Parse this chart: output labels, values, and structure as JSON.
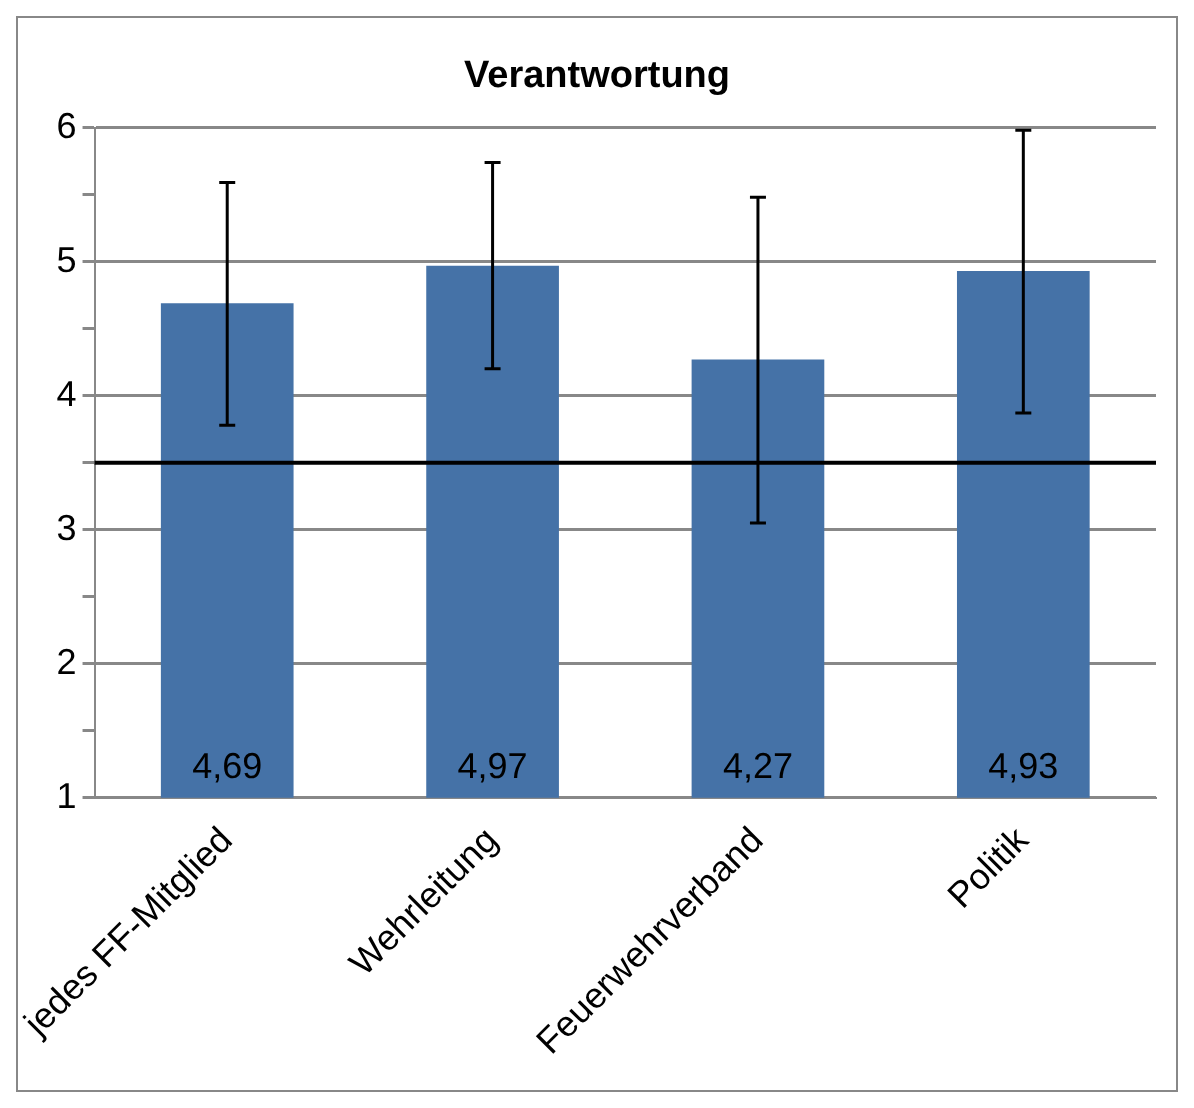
{
  "chart_data": {
    "type": "bar",
    "title": "Verantwortung",
    "categories": [
      "jedes FF-Mitglied",
      "Wehrleitung",
      "Feuerwehrverband",
      "Politik"
    ],
    "values": [
      4.69,
      4.97,
      4.27,
      4.93
    ],
    "value_labels": [
      "4,69",
      "4,97",
      "4,27",
      "4,93"
    ],
    "errors": [
      [
        3.78,
        5.59
      ],
      [
        4.2,
        5.74
      ],
      [
        3.05,
        5.48
      ],
      [
        3.87,
        5.98
      ]
    ],
    "color": "#4572a7",
    "ylim": [
      1,
      6
    ],
    "yticks": [
      1,
      {
        "value": 1.5,
        "label": null
      },
      2,
      {
        "value": 2.5,
        "label": null
      },
      3,
      {
        "value": 3.5,
        "label": null
      },
      4,
      {
        "value": 4.5,
        "label": null
      },
      5,
      {
        "value": 5.5,
        "label": null
      },
      6
    ],
    "ref_lines": [
      {
        "axis": "y",
        "value": 3.5,
        "color": "#000000"
      }
    ],
    "grid": "y",
    "legend": false
  }
}
